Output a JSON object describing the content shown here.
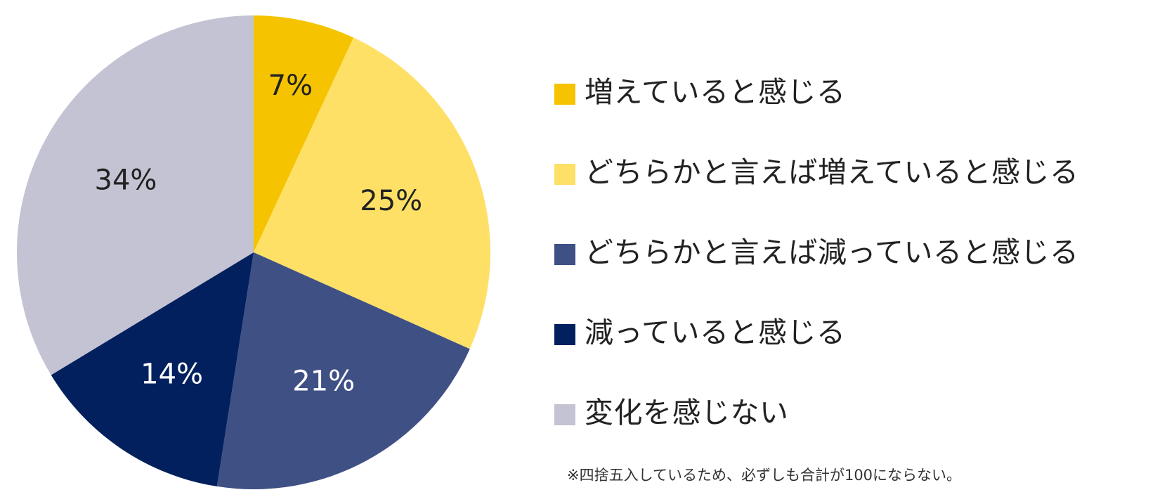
{
  "chart_data": {
    "type": "pie",
    "start_angle": "12 o'clock",
    "direction": "clockwise",
    "slices": [
      {
        "label": "増えていると感じる",
        "value": 7,
        "display": "7%",
        "color": "#F5C300",
        "label_color": "#222222"
      },
      {
        "label": "どちらかと言えば増えていると感じる",
        "value": 25,
        "display": "25%",
        "color": "#FFE066",
        "label_color": "#222222"
      },
      {
        "label": "どちらかと言えば減っていると感じる",
        "value": 21,
        "display": "21%",
        "color": "#3F5085",
        "label_color": "#FFFFFF"
      },
      {
        "label": "減っていると感じる",
        "value": 14,
        "display": "14%",
        "color": "#02205E",
        "label_color": "#FFFFFF"
      },
      {
        "label": "変化を感じない",
        "value": 34,
        "display": "34%",
        "color": "#C3C3D3",
        "label_color": "#222222"
      }
    ],
    "legend_position": "right",
    "footnote": "※四捨五入しているため、必ずしも合計が100にならない。"
  }
}
